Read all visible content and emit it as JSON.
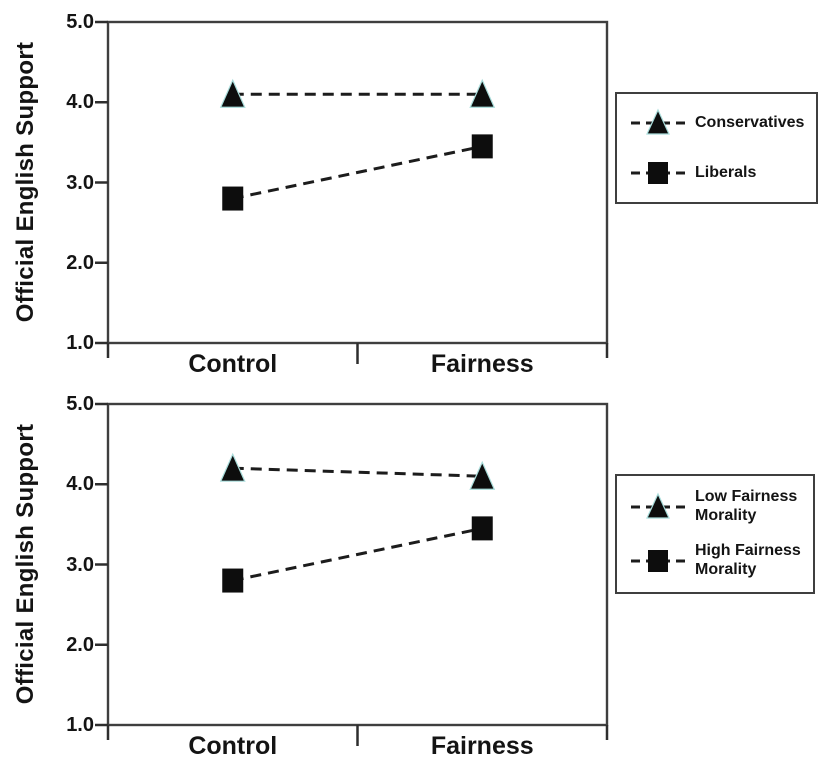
{
  "colors": {
    "background": "#ffffff",
    "text": "#141414",
    "frame": "#3f3f3f",
    "tick": "#2e2e2e",
    "line": "#1c1c1c",
    "marker_fill": "#0d0d0d",
    "triangle_edge": "#a8dcda"
  },
  "chart_data": [
    {
      "type": "line",
      "title": "",
      "ylabel": "Official English Support",
      "xlabel": "",
      "categories": [
        "Control",
        "Fairness"
      ],
      "ylim": [
        1.0,
        5.0
      ],
      "yticks": [
        5.0,
        4.0,
        3.0,
        2.0,
        1.0
      ],
      "ytick_labels": [
        "5.0",
        "4.0",
        "3.0",
        "2.0",
        "1.0"
      ],
      "grid": false,
      "line_style": "dashed",
      "legend_position": "right",
      "series": [
        {
          "name": "Conservatives",
          "marker": "triangle",
          "values": [
            4.1,
            4.1
          ]
        },
        {
          "name": "Liberals",
          "marker": "square",
          "values": [
            2.8,
            3.45
          ]
        }
      ]
    },
    {
      "type": "line",
      "title": "",
      "ylabel": "Official English Support",
      "xlabel": "",
      "categories": [
        "Control",
        "Fairness"
      ],
      "ylim": [
        1.0,
        5.0
      ],
      "yticks": [
        5.0,
        4.0,
        3.0,
        2.0,
        1.0
      ],
      "ytick_labels": [
        "5.0",
        "4.0",
        "3.0",
        "2.0",
        "1.0"
      ],
      "grid": false,
      "line_style": "dashed",
      "legend_position": "right",
      "series": [
        {
          "name": "Low Fairness\nMorality",
          "marker": "triangle",
          "values": [
            4.2,
            4.1
          ]
        },
        {
          "name": "High Fairness\nMorality",
          "marker": "square",
          "values": [
            2.8,
            3.45
          ]
        }
      ]
    }
  ]
}
